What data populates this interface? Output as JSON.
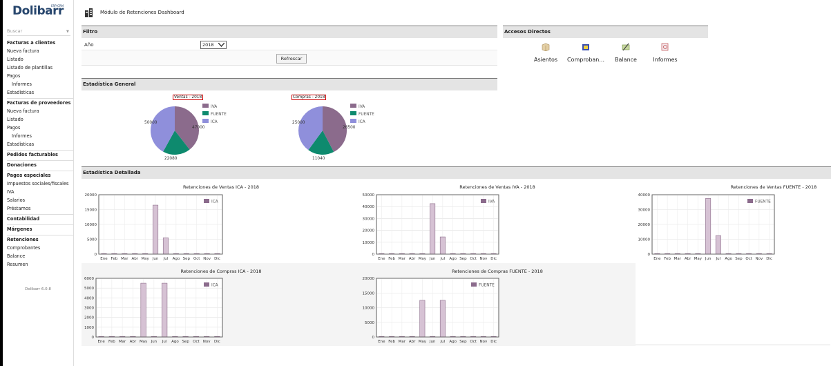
{
  "brand": {
    "logo_text": "Dolibarr",
    "logo_sub": "ERP/CRM",
    "version": "Dolibarr 6.0.8"
  },
  "search": {
    "placeholder": "Buscar",
    "arrow": "▼"
  },
  "menu": [
    {
      "label": "Facturas a clientes",
      "type": "h"
    },
    {
      "label": "Nueva factura",
      "type": "i"
    },
    {
      "label": "Listado",
      "type": "i"
    },
    {
      "label": "Listado de plantillas",
      "type": "i"
    },
    {
      "label": "Pagos",
      "type": "i"
    },
    {
      "label": "Informes",
      "type": "sub"
    },
    {
      "label": "Estadísticas",
      "type": "i"
    },
    {
      "label": "Facturas de proveedores",
      "type": "h"
    },
    {
      "label": "Nueva factura",
      "type": "i"
    },
    {
      "label": "Listado",
      "type": "i"
    },
    {
      "label": "Pagos",
      "type": "i"
    },
    {
      "label": "Informes",
      "type": "sub"
    },
    {
      "label": "Estadísticas",
      "type": "i"
    },
    {
      "label": "Pedidos facturables",
      "type": "h"
    },
    {
      "label": "Donaciones",
      "type": "h"
    },
    {
      "label": "Pagos especiales",
      "type": "h"
    },
    {
      "label": "Impuestos sociales/fiscales",
      "type": "i"
    },
    {
      "label": "IVA",
      "type": "i"
    },
    {
      "label": "Salarios",
      "type": "i"
    },
    {
      "label": "Préstamos",
      "type": "i"
    },
    {
      "label": "Contabilidad",
      "type": "h"
    },
    {
      "label": "Márgenes",
      "type": "h"
    },
    {
      "label": "Retenciones",
      "type": "h"
    },
    {
      "label": "Comprobantes",
      "type": "i"
    },
    {
      "label": "Balance",
      "type": "i"
    },
    {
      "label": "Resumen",
      "type": "i"
    }
  ],
  "page": {
    "title": "Módulo de Retenciones Dashboard"
  },
  "filter": {
    "header": "Filtro",
    "year_label": "Año",
    "year_value": "2018",
    "button": "Refrescar"
  },
  "shortcuts": {
    "header": "Accesos Directos",
    "items": [
      {
        "label": "Asientos",
        "icon": "box-icon",
        "color": "#e0c9a0"
      },
      {
        "label": "Comproban...",
        "icon": "folder-icon",
        "color": "#3a4fb0"
      },
      {
        "label": "Balance",
        "icon": "pen-icon",
        "color": "#7a9a3a"
      },
      {
        "label": "Informes",
        "icon": "report-icon",
        "color": "#c05050"
      }
    ]
  },
  "general": {
    "header": "Estadística General"
  },
  "detailed": {
    "header": "Estadística Detallada"
  },
  "colors": {
    "iva": "#8b6b8c",
    "fuente": "#0e8a6e",
    "ica": "#8f8fdb",
    "bar_fill": "#d6c2d4",
    "bar_stroke": "#8a6a88"
  },
  "chart_data": [
    {
      "type": "pie",
      "title": "Ventas - 2018",
      "legend": [
        "IVA",
        "FUENTE",
        "ICA"
      ],
      "values": [
        47000,
        22080,
        50000
      ],
      "labels": [
        "47000",
        "22080",
        "50000"
      ]
    },
    {
      "type": "pie",
      "title": "Compras - 2018",
      "legend": [
        "IVA",
        "FUENTE",
        "ICA"
      ],
      "values": [
        26500,
        11040,
        25000
      ],
      "labels": [
        "26500",
        "11040",
        "25000"
      ]
    },
    {
      "type": "bar",
      "title": "Retenciones de Ventas ICA - 2018",
      "series_name": "ICA",
      "categories": [
        "Ene",
        "Feb",
        "Mar",
        "Abr",
        "May",
        "Jun",
        "Jul",
        "Ago",
        "Sep",
        "Oct",
        "Nov",
        "Dic"
      ],
      "values": [
        0,
        0,
        0,
        0,
        0,
        16500,
        5500,
        0,
        0,
        0,
        0,
        0
      ],
      "ylim": [
        0,
        20000
      ],
      "yticks": [
        0,
        5000,
        10000,
        15000,
        20000
      ]
    },
    {
      "type": "bar",
      "title": "Retenciones de Ventas IVA - 2018",
      "series_name": "IVA",
      "categories": [
        "Ene",
        "Feb",
        "Mar",
        "Abr",
        "May",
        "Jun",
        "Jul",
        "Ago",
        "Sep",
        "Oct",
        "Nov",
        "Dic"
      ],
      "values": [
        0,
        0,
        0,
        0,
        0,
        42500,
        14500,
        0,
        0,
        0,
        0,
        0
      ],
      "ylim": [
        0,
        50000
      ],
      "yticks": [
        0,
        10000,
        20000,
        30000,
        40000,
        50000
      ]
    },
    {
      "type": "bar",
      "title": "Retenciones de Ventas FUENTE - 2018",
      "series_name": "FUENTE",
      "categories": [
        "Ene",
        "Feb",
        "Mar",
        "Abr",
        "May",
        "Jun",
        "Jul",
        "Ago",
        "Sep",
        "Oct",
        "Nov",
        "Dic"
      ],
      "values": [
        0,
        0,
        0,
        0,
        0,
        37500,
        12500,
        0,
        0,
        0,
        0,
        0
      ],
      "ylim": [
        0,
        40000
      ],
      "yticks": [
        0,
        10000,
        20000,
        30000,
        40000
      ]
    },
    {
      "type": "bar",
      "title": "Retenciones de Compras ICA - 2018",
      "series_name": "ICA",
      "categories": [
        "Ene",
        "Feb",
        "Mar",
        "Abr",
        "May",
        "Jun",
        "Jul",
        "Ago",
        "Sep",
        "Oct",
        "Nov",
        "Dic"
      ],
      "values": [
        0,
        0,
        0,
        0,
        5500,
        0,
        5500,
        0,
        0,
        0,
        0,
        0
      ],
      "ylim": [
        0,
        6000
      ],
      "yticks": [
        0,
        1000,
        2000,
        3000,
        4000,
        5000,
        6000
      ]
    },
    {
      "type": "bar",
      "title": "Retenciones de Compras FUENTE - 2018",
      "series_name": "FUENTE",
      "categories": [
        "Ene",
        "Feb",
        "Mar",
        "Abr",
        "May",
        "Jun",
        "Jul",
        "Ago",
        "Sep",
        "Oct",
        "Nov",
        "Dic"
      ],
      "values": [
        0,
        0,
        0,
        0,
        12500,
        0,
        12500,
        0,
        0,
        0,
        0,
        0
      ],
      "ylim": [
        0,
        20000
      ],
      "yticks": [
        0,
        5000,
        10000,
        15000,
        20000
      ]
    }
  ]
}
